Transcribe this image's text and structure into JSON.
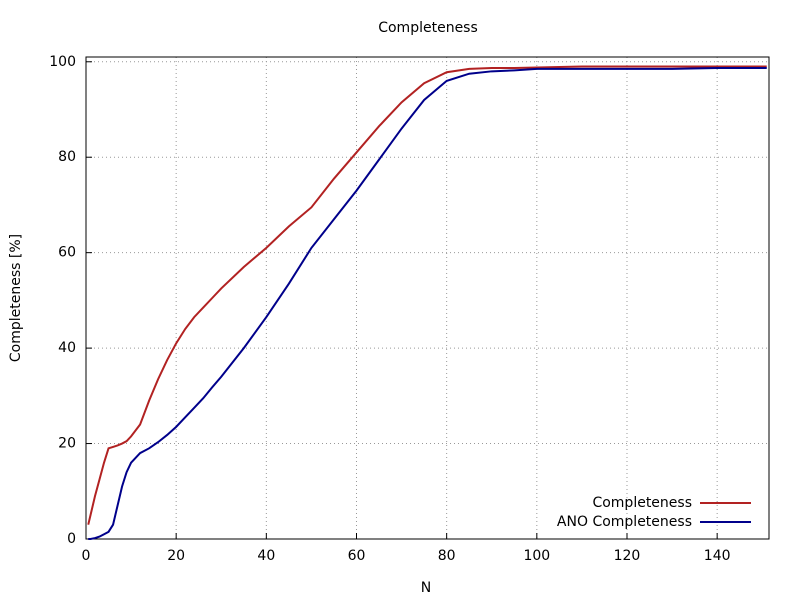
{
  "chart_data": {
    "type": "line",
    "title": "Completeness",
    "x_label": "N",
    "y_label": "Completeness [%]",
    "x": [
      0.5,
      1,
      2,
      3,
      4,
      5,
      6,
      7,
      8,
      9,
      10,
      12,
      14,
      16,
      18,
      20,
      22,
      24,
      26,
      28,
      30,
      35,
      40,
      45,
      50,
      55,
      60,
      65,
      70,
      75,
      80,
      85,
      90,
      95,
      100,
      110,
      120,
      130,
      140,
      151
    ],
    "series": [
      {
        "name": "Completeness",
        "color": "#b22222",
        "values": [
          3,
          5,
          9,
          12.5,
          16,
          19,
          19.3,
          19.6,
          20,
          20.5,
          21.5,
          24,
          29,
          33.5,
          37.5,
          41,
          44,
          46.5,
          48.5,
          50.5,
          52.5,
          57,
          61,
          65.5,
          69.5,
          75.5,
          81,
          86.5,
          91.5,
          95.5,
          97.8,
          98.5,
          98.7,
          98.7,
          98.8,
          99,
          99,
          99,
          99,
          99
        ]
      },
      {
        "name": "ANO Completeness",
        "color": "#00008b",
        "values": [
          0,
          0,
          0.2,
          0.5,
          1,
          1.5,
          3,
          7,
          11,
          14,
          16,
          18,
          19,
          20.3,
          21.8,
          23.5,
          25.5,
          27.5,
          29.5,
          31.8,
          34,
          40,
          46.5,
          53.5,
          61,
          67,
          73,
          79.5,
          86,
          92,
          96,
          97.5,
          98,
          98.2,
          98.5,
          98.5,
          98.5,
          98.5,
          98.7,
          98.7
        ]
      }
    ],
    "xlim": [
      0,
      151.5
    ],
    "xticks": [
      0,
      20,
      40,
      60,
      80,
      100,
      120,
      140
    ],
    "ylim": [
      0,
      101
    ],
    "yticks": [
      0,
      20,
      40,
      60,
      80,
      100
    ],
    "grid": true,
    "legend": "bottom-right"
  }
}
